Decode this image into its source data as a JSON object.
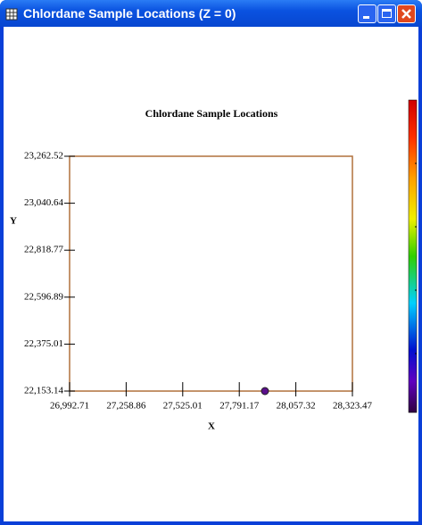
{
  "window": {
    "title": "Chlordane Sample Locations (Z = 0)"
  },
  "chart_data": {
    "type": "scatter",
    "title": "Chlordane Sample Locations",
    "xlabel": "X",
    "ylabel": "Y",
    "x": [
      27912
    ],
    "y": [
      22153.14
    ],
    "color": "#5b0f8c",
    "xlim": [
      26992.71,
      28323.47
    ],
    "ylim": [
      22153.14,
      23262.52
    ],
    "xticks": [
      {
        "value": 26992.71,
        "label": "26,992.71"
      },
      {
        "value": 27258.86,
        "label": "27,258.86"
      },
      {
        "value": 27525.01,
        "label": "27,525.01"
      },
      {
        "value": 27791.17,
        "label": "27,791.17"
      },
      {
        "value": 28057.32,
        "label": "28,057.32"
      },
      {
        "value": 28323.47,
        "label": "28,323.47"
      }
    ],
    "yticks": [
      {
        "value": 22153.14,
        "label": "22,153.14"
      },
      {
        "value": 22375.01,
        "label": "22,375.01"
      },
      {
        "value": 22596.89,
        "label": "22,596.89"
      },
      {
        "value": 22818.77,
        "label": "22,818.77"
      },
      {
        "value": 23040.64,
        "label": "23,040.64"
      },
      {
        "value": 23262.52,
        "label": "23,262.52"
      }
    ]
  }
}
